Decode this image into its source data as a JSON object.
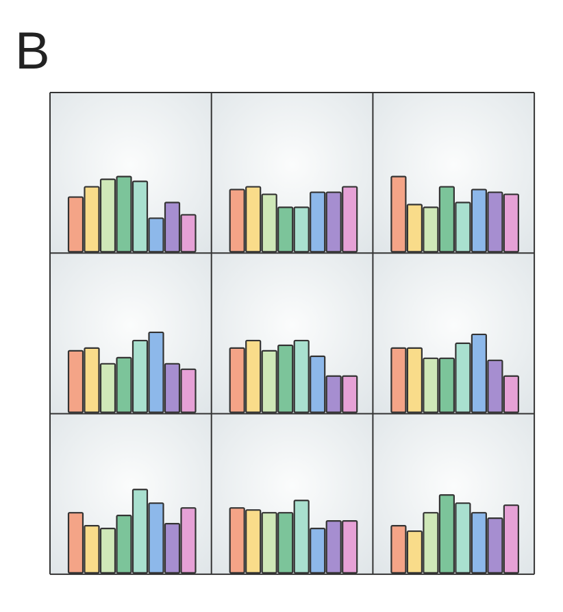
{
  "panel_label": "B",
  "chart_data": [
    {
      "type": "bar",
      "values": [
        80,
        95,
        106,
        110,
        103,
        49,
        72,
        54
      ],
      "colors": [
        "#f4a487",
        "#f9dc8a",
        "#cfe8b8",
        "#7cc49a",
        "#a9e0cf",
        "#8db8ea",
        "#a68ed0",
        "#e6a1d6"
      ],
      "ylim": [
        0,
        233
      ]
    },
    {
      "type": "bar",
      "values": [
        91,
        95,
        84,
        65,
        65,
        87,
        87,
        95
      ],
      "colors": [
        "#f4a487",
        "#f9dc8a",
        "#cfe8b8",
        "#7cc49a",
        "#a9e0cf",
        "#8db8ea",
        "#a68ed0",
        "#e6a1d6"
      ],
      "ylim": [
        0,
        233
      ]
    },
    {
      "type": "bar",
      "values": [
        110,
        69,
        65,
        95,
        72,
        91,
        87,
        84
      ],
      "colors": [
        "#f4a487",
        "#f9dc8a",
        "#cfe8b8",
        "#7cc49a",
        "#a9e0cf",
        "#8db8ea",
        "#a68ed0",
        "#e6a1d6"
      ],
      "ylim": [
        0,
        233
      ]
    },
    {
      "type": "bar",
      "values": [
        90,
        94,
        71,
        80,
        105,
        117,
        71,
        63
      ],
      "colors": [
        "#f4a487",
        "#f9dc8a",
        "#cfe8b8",
        "#7cc49a",
        "#a9e0cf",
        "#8db8ea",
        "#a68ed0",
        "#e6a1d6"
      ],
      "ylim": [
        0,
        233
      ]
    },
    {
      "type": "bar",
      "values": [
        94,
        105,
        90,
        98,
        105,
        82,
        53,
        53
      ],
      "colors": [
        "#f4a487",
        "#f9dc8a",
        "#cfe8b8",
        "#7cc49a",
        "#a9e0cf",
        "#8db8ea",
        "#a68ed0",
        "#e6a1d6"
      ],
      "ylim": [
        0,
        233
      ]
    },
    {
      "type": "bar",
      "values": [
        94,
        94,
        79,
        79,
        101,
        114,
        76,
        53
      ],
      "colors": [
        "#f4a487",
        "#f9dc8a",
        "#cfe8b8",
        "#7cc49a",
        "#a9e0cf",
        "#8db8ea",
        "#a68ed0",
        "#e6a1d6"
      ],
      "ylim": [
        0,
        233
      ]
    },
    {
      "type": "bar",
      "values": [
        88,
        69,
        65,
        84,
        122,
        102,
        72,
        95
      ],
      "colors": [
        "#f4a487",
        "#f9dc8a",
        "#cfe8b8",
        "#7cc49a",
        "#a9e0cf",
        "#8db8ea",
        "#a68ed0",
        "#e6a1d6"
      ],
      "ylim": [
        0,
        233
      ]
    },
    {
      "type": "bar",
      "values": [
        95,
        92,
        88,
        88,
        106,
        65,
        76,
        76
      ],
      "colors": [
        "#f4a487",
        "#f9dc8a",
        "#cfe8b8",
        "#7cc49a",
        "#a9e0cf",
        "#8db8ea",
        "#a68ed0",
        "#e6a1d6"
      ],
      "ylim": [
        0,
        233
      ]
    },
    {
      "type": "bar",
      "values": [
        69,
        61,
        88,
        114,
        102,
        88,
        80,
        99
      ],
      "colors": [
        "#f4a487",
        "#f9dc8a",
        "#cfe8b8",
        "#7cc49a",
        "#a9e0cf",
        "#8db8ea",
        "#a68ed0",
        "#e6a1d6"
      ],
      "ylim": [
        0,
        233
      ]
    }
  ]
}
